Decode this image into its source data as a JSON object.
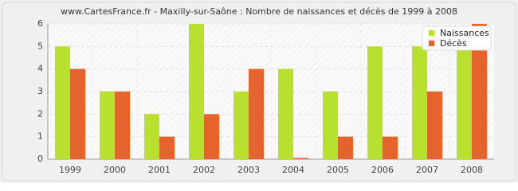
{
  "chart_data": {
    "type": "bar",
    "title": "www.CartesFrance.fr - Maxilly-sur-Saône : Nombre de naissances et décès de 1999 à 2008",
    "categories": [
      "1999",
      "2000",
      "2001",
      "2002",
      "2003",
      "2004",
      "2005",
      "2006",
      "2007",
      "2008"
    ],
    "series": [
      {
        "name": "Naissances",
        "color": "#b8e02e",
        "values": [
          5,
          3,
          2,
          6,
          3,
          4,
          3,
          5,
          5,
          5
        ]
      },
      {
        "name": "Décès",
        "color": "#e5642e",
        "values": [
          4,
          3,
          1,
          2,
          4,
          0,
          1,
          1,
          3,
          6
        ]
      }
    ],
    "ylim": [
      0,
      6
    ],
    "yticks": [
      0,
      1,
      2,
      3,
      4,
      5,
      6
    ],
    "grid": true,
    "legend": "top-right"
  }
}
